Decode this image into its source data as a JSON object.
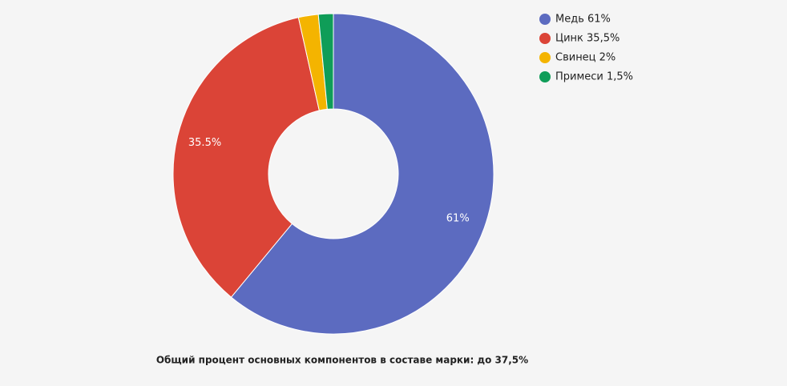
{
  "chart_data": {
    "type": "donut",
    "categories": [
      "Медь 61%",
      "Цинк 35,5%",
      "Свинец 2%",
      "Примеси 1,5%"
    ],
    "values": [
      61,
      35.5,
      2,
      1.5
    ],
    "value_labels": [
      "61%",
      "35.5%",
      null,
      null
    ],
    "colors": [
      "#5c6bc0",
      "#db4437",
      "#f4b400",
      "#0f9d58"
    ],
    "legend": "top-right",
    "caption": "Общий процент основных компонентов в составе марки: до 37,5%"
  }
}
